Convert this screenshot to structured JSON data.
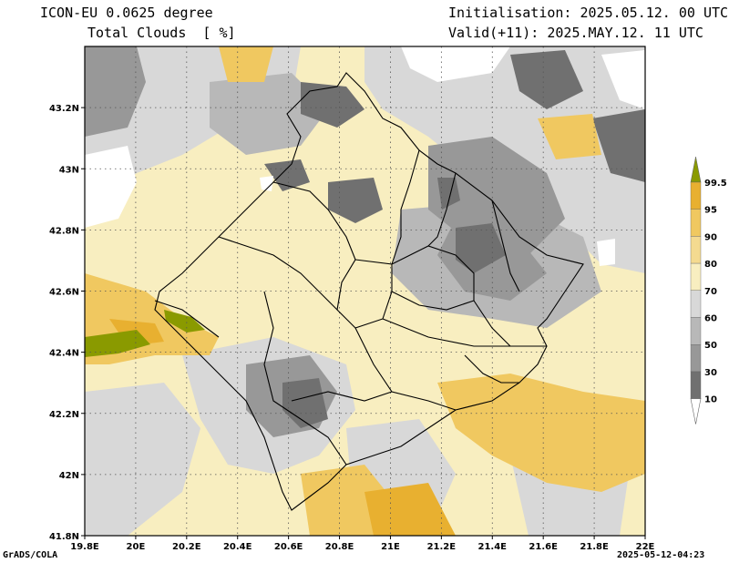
{
  "header": {
    "model": "ICON-EU 0.0625 degree",
    "variable": "Total Clouds  [ %]",
    "init": "Initialisation: 2025.05.12. 00 UTC",
    "valid": "Valid(+11): 2025.MAY.12. 11 UTC"
  },
  "footer": {
    "credit": "GrADS/COLA",
    "timestamp": "2025-05-12-04:23"
  },
  "axes": {
    "lon_ticks": [
      "19.8E",
      "20E",
      "20.2E",
      "20.4E",
      "20.6E",
      "20.8E",
      "21E",
      "21.2E",
      "21.4E",
      "21.6E",
      "21.8E",
      "22E"
    ],
    "lat_ticks": [
      "41.8N",
      "42N",
      "42.2N",
      "42.4N",
      "42.6N",
      "42.8N",
      "43N",
      "43.2N"
    ],
    "lon_range": [
      19.8,
      22.0
    ],
    "lat_range": [
      41.8,
      43.4
    ]
  },
  "colorbar": {
    "labels": [
      "99.5",
      "95",
      "90",
      "80",
      "70",
      "60",
      "50",
      "30",
      "10"
    ],
    "colors": [
      "#8a9a00",
      "#e8b030",
      "#f0c860",
      "#f4da90",
      "#f8eec0",
      "#d8d8d8",
      "#b8b8b8",
      "#989898",
      "#707070",
      "#ffffff"
    ]
  }
}
